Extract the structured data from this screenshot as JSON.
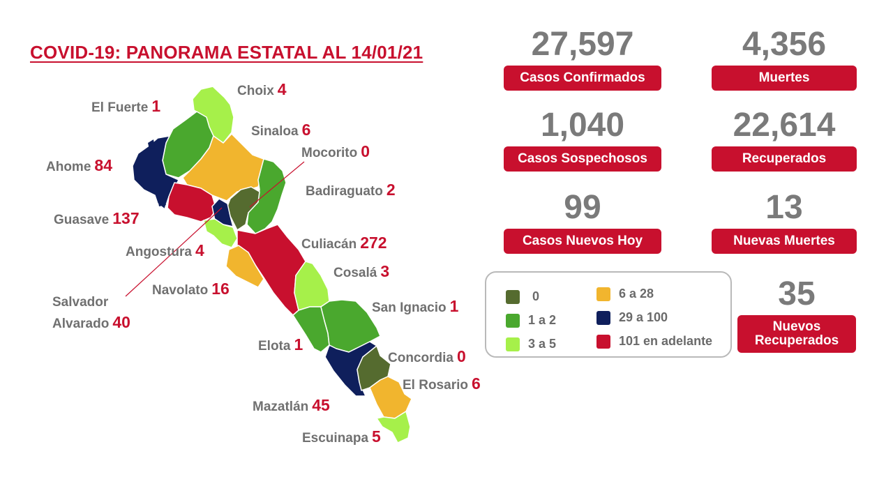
{
  "title": "COVID-19: PANORAMA ESTATAL AL 14/01/21",
  "colors": {
    "accent": "#c8102e",
    "stat_value": "#7a7a7a",
    "label_text": "#707070"
  },
  "stats": {
    "confirmados": {
      "value": "27,597",
      "label": "Casos Confirmados"
    },
    "muertes": {
      "value": "4,356",
      "label": "Muertes"
    },
    "sospechosos": {
      "value": "1,040",
      "label": "Casos Sospechosos"
    },
    "recuperados": {
      "value": "22,614",
      "label": "Recuperados"
    },
    "nuevos_hoy": {
      "value": "99",
      "label": "Casos Nuevos Hoy"
    },
    "nuevas_muertes": {
      "value": "13",
      "label": "Nuevas Muertes"
    },
    "nuevos_recuperados": {
      "value": "35",
      "label": "Nuevos Recuperados"
    }
  },
  "legend": [
    {
      "label": "0",
      "color": "#556b2f"
    },
    {
      "label": "1 a 2",
      "color": "#4aa82e"
    },
    {
      "label": "3 a 5",
      "color": "#a6f04a"
    },
    {
      "label": "6 a 28",
      "color": "#f1b52e"
    },
    {
      "label": "29 a 100",
      "color": "#0f1f5c"
    },
    {
      "label": "101 en adelante",
      "color": "#c8102e"
    }
  ],
  "municipios": {
    "choix": {
      "name": "Choix",
      "count": "4",
      "color": "#a6f04a"
    },
    "el_fuerte": {
      "name": "El Fuerte",
      "count": "1",
      "color": "#4aa82e"
    },
    "sinaloa": {
      "name": "Sinaloa",
      "count": "6",
      "color": "#f1b52e"
    },
    "mocorito": {
      "name": "Mocorito",
      "count": "0",
      "color": "#556b2f"
    },
    "ahome": {
      "name": "Ahome",
      "count": "84",
      "color": "#0f1f5c"
    },
    "badiraguato": {
      "name": "Badiraguato",
      "count": "2",
      "color": "#4aa82e"
    },
    "guasave": {
      "name": "Guasave",
      "count": "137",
      "color": "#c8102e"
    },
    "culiacan": {
      "name": "Culiacán",
      "count": "272",
      "color": "#c8102e"
    },
    "angostura": {
      "name": "Angostura",
      "count": "4",
      "color": "#a6f04a"
    },
    "cosala": {
      "name": "Cosalá",
      "count": "3",
      "color": "#a6f04a"
    },
    "navolato": {
      "name": "Navolato",
      "count": "16",
      "color": "#f1b52e"
    },
    "salvador_alvarado": {
      "name_line1": "Salvador",
      "name_line2": "Alvarado",
      "count": "40",
      "color": "#0f1f5c"
    },
    "san_ignacio": {
      "name": "San Ignacio",
      "count": "1",
      "color": "#4aa82e"
    },
    "elota": {
      "name": "Elota",
      "count": "1",
      "color": "#4aa82e"
    },
    "concordia": {
      "name": "Concordia",
      "count": "0",
      "color": "#556b2f"
    },
    "el_rosario": {
      "name": "El Rosario",
      "count": "6",
      "color": "#f1b52e"
    },
    "mazatlan": {
      "name": "Mazatlán",
      "count": "45",
      "color": "#0f1f5c"
    },
    "escuinapa": {
      "name": "Escuinapa",
      "count": "5",
      "color": "#a6f04a"
    }
  }
}
